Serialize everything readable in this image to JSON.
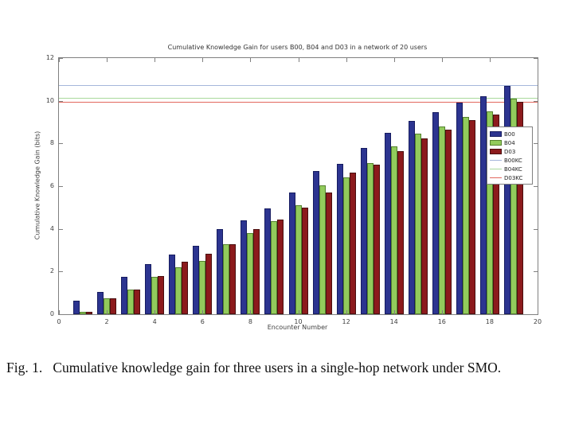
{
  "figure": {
    "caption": "Fig. 1.   Cumulative knowledge gain for three users in a single-hop network under SMO."
  },
  "chart_data": {
    "type": "bar",
    "title": "Cumulative Knowledge Gain for users B00, B04 and D03 in a network of 20 users",
    "xlabel": "Encounter Number",
    "ylabel": "Cumulative Knowledge Gain (bits)",
    "xlim": [
      0,
      20
    ],
    "ylim": [
      0,
      12
    ],
    "xticks": [
      0,
      2,
      4,
      6,
      8,
      10,
      12,
      14,
      16,
      18,
      20
    ],
    "yticks": [
      0,
      2,
      4,
      6,
      8,
      10,
      12
    ],
    "grid": false,
    "legend_position": "right-middle",
    "categories": [
      1,
      2,
      3,
      4,
      5,
      6,
      7,
      8,
      9,
      10,
      11,
      12,
      13,
      14,
      15,
      16,
      17,
      18,
      19
    ],
    "series": [
      {
        "name": "B00",
        "color": "#2C3490",
        "edge": "#161C60",
        "values": [
          0.65,
          1.05,
          1.75,
          2.35,
          2.8,
          3.2,
          4.0,
          4.4,
          4.95,
          5.7,
          6.7,
          7.05,
          7.8,
          8.5,
          9.05,
          9.45,
          9.9,
          10.2,
          10.7
        ]
      },
      {
        "name": "B04",
        "color": "#92CB5C",
        "edge": "#55822F",
        "values": [
          0.1,
          0.75,
          1.15,
          1.75,
          2.2,
          2.5,
          3.3,
          3.8,
          4.35,
          5.1,
          6.05,
          6.4,
          7.1,
          7.85,
          8.45,
          8.8,
          9.25,
          9.5,
          10.1
        ]
      },
      {
        "name": "D03",
        "color": "#8C1A1C",
        "edge": "#4A0E0E",
        "values": [
          0.1,
          0.75,
          1.15,
          1.8,
          2.45,
          2.85,
          3.3,
          4.0,
          4.45,
          5.0,
          5.7,
          6.65,
          7.0,
          7.65,
          8.25,
          8.65,
          9.1,
          9.35,
          9.95
        ]
      }
    ],
    "hlines": [
      {
        "name": "B00KC",
        "value": 10.75,
        "color": "#A5B6DB"
      },
      {
        "name": "B04KC",
        "value": 10.15,
        "color": "#A9D99C"
      },
      {
        "name": "D03KC",
        "value": 9.95,
        "color": "#E2685E"
      }
    ],
    "legend": [
      {
        "label": "B00",
        "swatch": "bar",
        "color": "#2C3490",
        "edge": "#161C60"
      },
      {
        "label": "B04",
        "swatch": "bar",
        "color": "#92CB5C",
        "edge": "#55822F"
      },
      {
        "label": "D03",
        "swatch": "bar",
        "color": "#8C1A1C",
        "edge": "#4A0E0E"
      },
      {
        "label": "B00KC",
        "swatch": "line",
        "color": "#A5B6DB"
      },
      {
        "label": "B04KC",
        "swatch": "line",
        "color": "#A9D99C"
      },
      {
        "label": "D03KC",
        "swatch": "line",
        "color": "#E2685E"
      }
    ]
  }
}
